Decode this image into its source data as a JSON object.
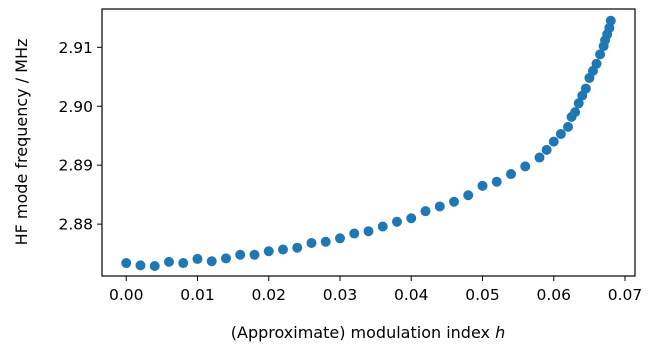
{
  "chart_data": {
    "type": "scatter",
    "xlabel": "(Approximate) modulation index",
    "xlabel_italic_symbol": "h",
    "ylabel": "HF mode frequency / MHz",
    "xlim": [
      -0.0034,
      0.0714
    ],
    "ylim": [
      2.8712,
      2.9165
    ],
    "x_ticks": [
      0.0,
      0.01,
      0.02,
      0.03,
      0.04,
      0.05,
      0.06,
      0.07
    ],
    "x_tick_labels": [
      "0.00",
      "0.01",
      "0.02",
      "0.03",
      "0.04",
      "0.05",
      "0.06",
      "0.07"
    ],
    "y_ticks": [
      2.88,
      2.89,
      2.9,
      2.91
    ],
    "y_tick_labels": [
      "2.88",
      "2.89",
      "2.90",
      "2.91"
    ],
    "grid": false,
    "marker_color": "#1f77b4",
    "series": [
      {
        "x": [
          0.0,
          0.002,
          0.004,
          0.006,
          0.008,
          0.01,
          0.012,
          0.014,
          0.016,
          0.018,
          0.02,
          0.022,
          0.024,
          0.026,
          0.028,
          0.03,
          0.032,
          0.034,
          0.036,
          0.038,
          0.04,
          0.042,
          0.044,
          0.046,
          0.048,
          0.05,
          0.052,
          0.054,
          0.056,
          0.058,
          0.059,
          0.06,
          0.061,
          0.062,
          0.0625,
          0.063,
          0.0635,
          0.064,
          0.0645,
          0.065,
          0.0655,
          0.066,
          0.0665,
          0.067,
          0.0672,
          0.0675,
          0.0678,
          0.068
        ],
        "y": [
          2.8734,
          2.873,
          2.8729,
          2.8736,
          2.8734,
          2.8741,
          2.8737,
          2.8742,
          2.8748,
          2.8748,
          2.8754,
          2.8757,
          2.876,
          2.8768,
          2.877,
          2.8776,
          2.8784,
          2.8788,
          2.8796,
          2.8804,
          2.881,
          2.8822,
          2.883,
          2.8838,
          2.8849,
          2.8865,
          2.8872,
          2.8885,
          2.8898,
          2.8913,
          2.8926,
          2.894,
          2.8953,
          2.8965,
          2.8982,
          2.899,
          2.9005,
          2.9018,
          2.903,
          2.9048,
          2.906,
          2.9072,
          2.9088,
          2.9102,
          2.9112,
          2.9122,
          2.9133,
          2.9145
        ]
      }
    ]
  }
}
